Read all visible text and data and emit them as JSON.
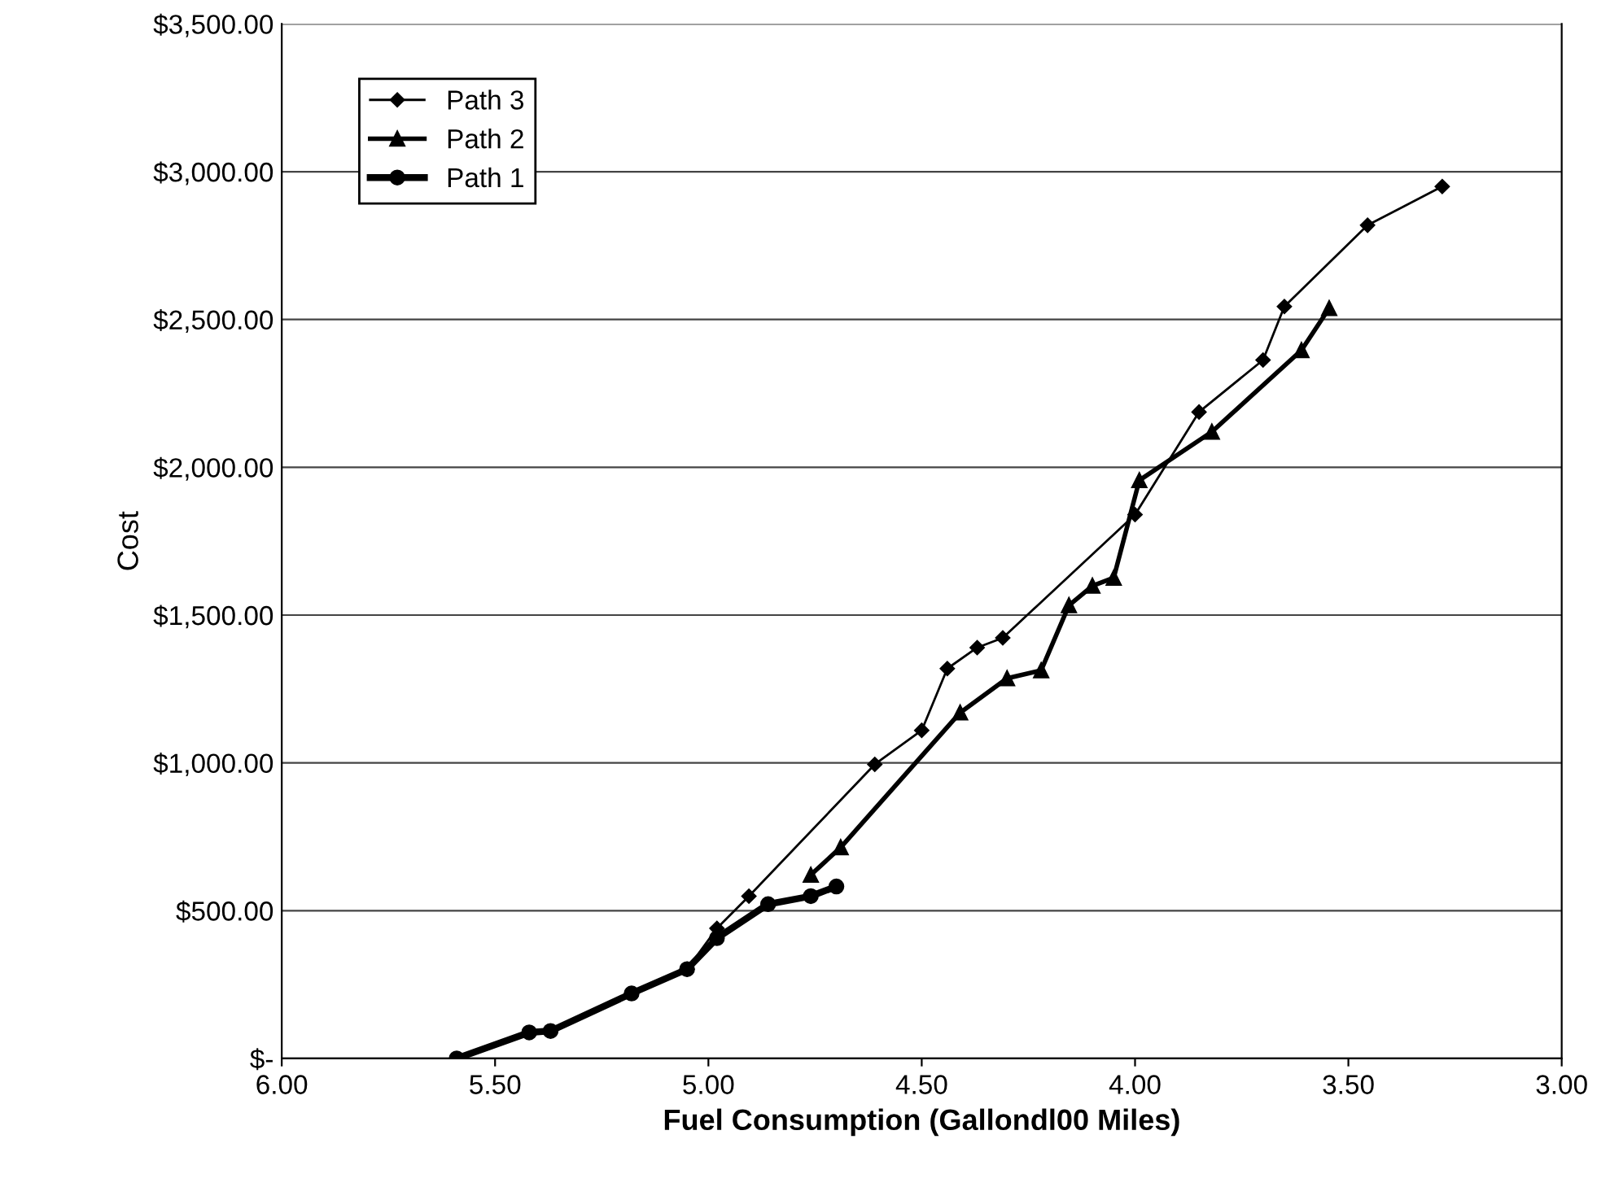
{
  "chart_data": {
    "type": "line",
    "xlabel": "Fuel Consumption (Gallondl00 Miles)",
    "ylabel": "Cost",
    "series": [
      {
        "name": "Path 3",
        "color": "#000000",
        "marker": "diamond",
        "x": [
          5.05,
          4.98,
          4.905,
          4.61,
          4.5,
          4.44,
          4.37,
          4.31,
          4.0,
          3.85,
          3.7,
          3.65,
          3.455,
          3.28
        ],
        "values": [
          302,
          440,
          549,
          995,
          1110,
          1319,
          1390,
          1423,
          1840,
          2187,
          2363,
          2544,
          2819,
          2950
        ]
      },
      {
        "name": "Path 2",
        "color": "#000000",
        "marker": "triangle",
        "x": [
          4.76,
          4.69,
          4.41,
          4.3,
          4.22,
          4.155,
          4.1,
          4.05,
          3.99,
          3.82,
          3.61,
          3.545
        ],
        "values": [
          621,
          714,
          1170,
          1286,
          1313,
          1533,
          1599,
          1626,
          1956,
          2120,
          2396,
          2538
        ]
      },
      {
        "name": "Path 1",
        "color": "#000000",
        "marker": "circle",
        "x": [
          5.59,
          5.42,
          5.37,
          5.18,
          5.05,
          4.98,
          4.86,
          4.76,
          4.7
        ],
        "values": [
          0,
          88,
          93,
          220,
          302,
          407,
          522,
          549,
          582
        ]
      }
    ],
    "xlim": [
      6,
      3
    ],
    "xticks": [
      {
        "value": 6,
        "label": "6.00"
      },
      {
        "value": 5.5,
        "label": "5.50"
      },
      {
        "value": 5,
        "label": "5.00"
      },
      {
        "value": 4.5,
        "label": "4.50"
      },
      {
        "value": 4,
        "label": "4.00"
      },
      {
        "value": 3.5,
        "label": "3.50"
      },
      {
        "value": 3,
        "label": "3.00"
      }
    ],
    "ylim": [
      0,
      3500
    ],
    "yticks": [
      {
        "value": 0,
        "label": "$-"
      },
      {
        "value": 500,
        "label": "$500.00"
      },
      {
        "value": 1000,
        "label": "$1,000.00"
      },
      {
        "value": 1500,
        "label": "$1,500.00"
      },
      {
        "value": 2000,
        "label": "$2,000.00"
      },
      {
        "value": 2500,
        "label": "$2,500.00"
      },
      {
        "value": 3000,
        "label": "$3,000.00"
      },
      {
        "value": 3500,
        "label": "$3,500.00"
      }
    ],
    "grid": "y",
    "legend": "top left",
    "line_style": "solid"
  }
}
